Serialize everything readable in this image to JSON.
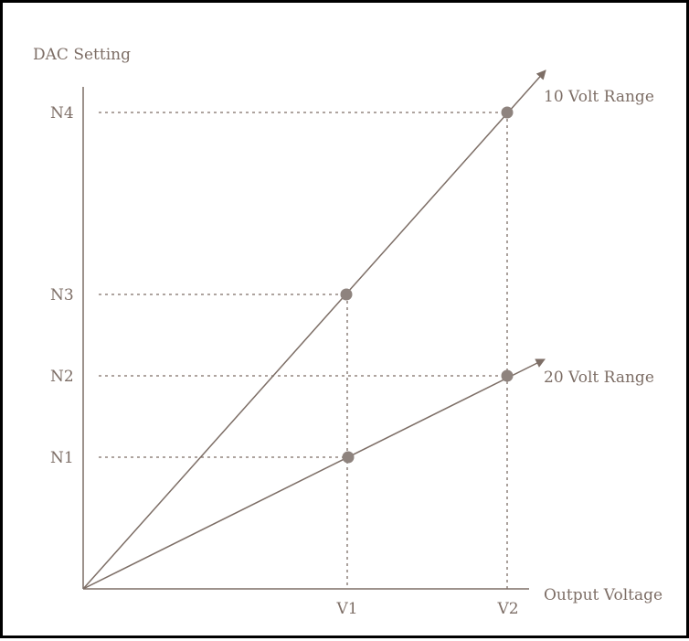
{
  "diagram": {
    "y_axis_label": "DAC Setting",
    "x_axis_label": "Output Voltage",
    "y_ticks": [
      "N1",
      "N2",
      "N3",
      "N4"
    ],
    "x_ticks": [
      "V1",
      "V2"
    ],
    "lines": [
      {
        "label": "10 Volt Range",
        "points": [
          [
            "V1",
            "N3"
          ],
          [
            "V2",
            "N4"
          ]
        ]
      },
      {
        "label": "20 Volt Range",
        "points": [
          [
            "V1",
            "N1"
          ],
          [
            "V2",
            "N2"
          ]
        ]
      }
    ],
    "colors": {
      "ink": "#7d6e66",
      "point": "#8e837e",
      "grid": "#7d6e66",
      "border": "#000000"
    }
  }
}
